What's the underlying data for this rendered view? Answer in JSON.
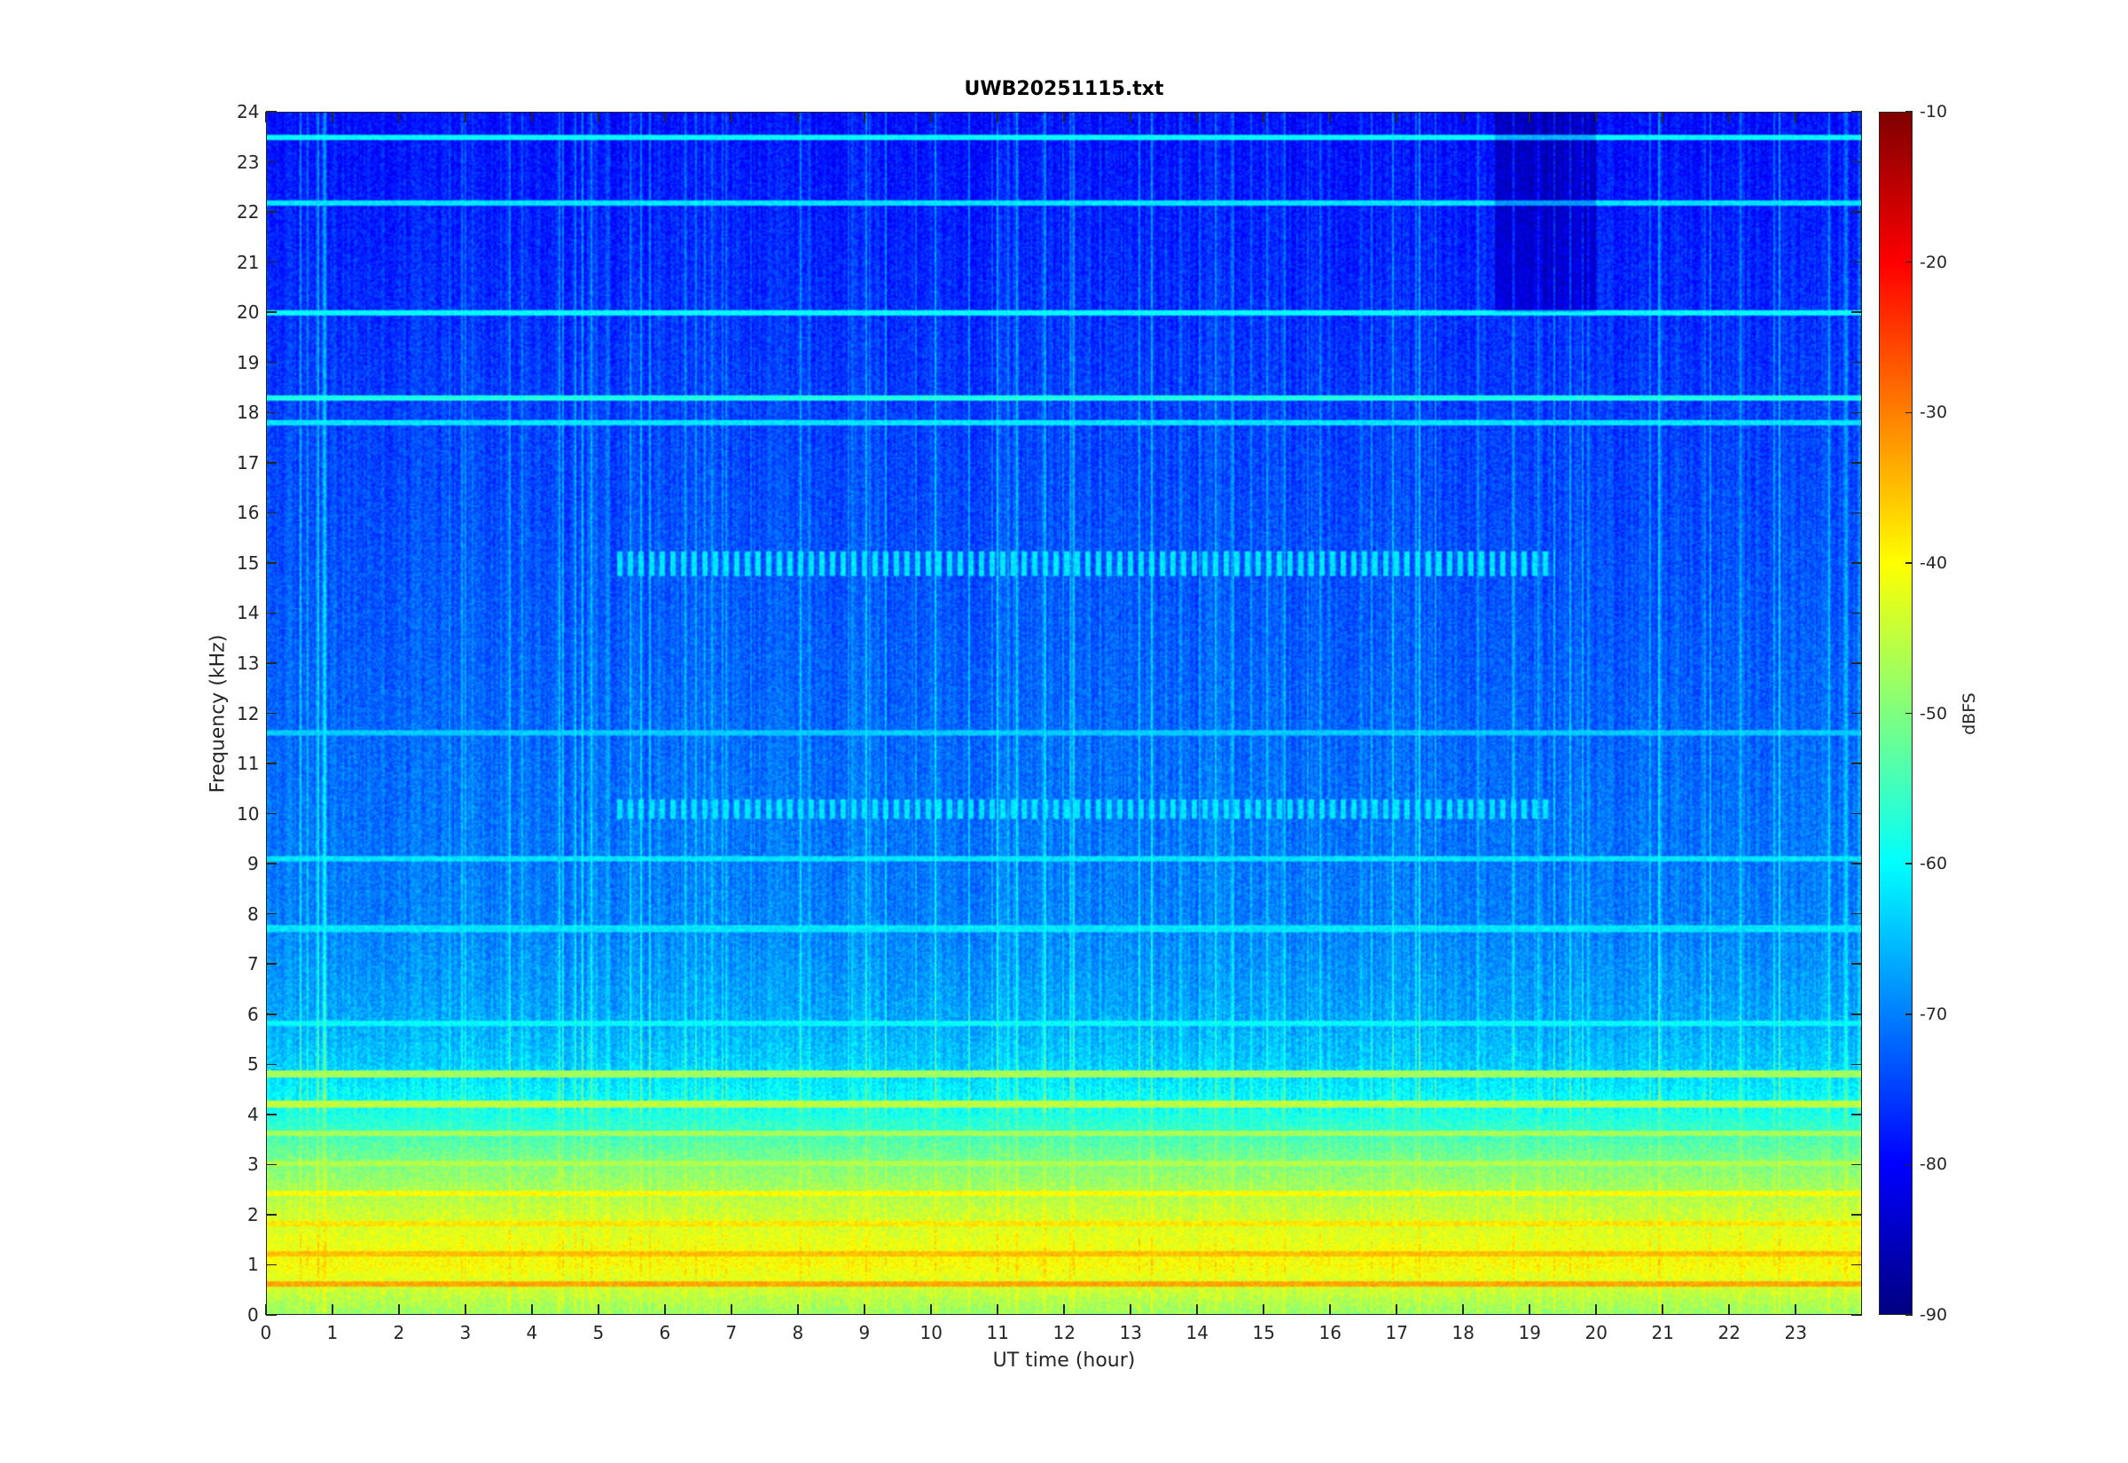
{
  "chart_data": {
    "type": "heatmap",
    "title": "UWB20251115.txt",
    "xlabel": "UT time (hour)",
    "ylabel": "Frequency (kHz)",
    "xlim": [
      0,
      24
    ],
    "ylim": [
      0,
      24
    ],
    "x_ticks": [
      "0",
      "1",
      "2",
      "3",
      "4",
      "5",
      "6",
      "7",
      "8",
      "9",
      "10",
      "11",
      "12",
      "13",
      "14",
      "15",
      "16",
      "17",
      "18",
      "19",
      "20",
      "21",
      "22",
      "23"
    ],
    "y_ticks": [
      "0",
      "1",
      "2",
      "3",
      "4",
      "5",
      "6",
      "7",
      "8",
      "9",
      "10",
      "11",
      "12",
      "13",
      "14",
      "15",
      "16",
      "17",
      "18",
      "19",
      "20",
      "21",
      "22",
      "23",
      "24"
    ],
    "colorbar": {
      "label": "dBFS",
      "range": [
        -90,
        -10
      ],
      "ticks": [
        "-10",
        "-20",
        "-30",
        "-40",
        "-50",
        "-60",
        "-70",
        "-80",
        "-90"
      ],
      "colormap": "jet"
    },
    "background_level_by_frequency": [
      {
        "freq_khz": 0,
        "dbfs": -48
      },
      {
        "freq_khz": 1,
        "dbfs": -40
      },
      {
        "freq_khz": 2,
        "dbfs": -44
      },
      {
        "freq_khz": 3,
        "dbfs": -50
      },
      {
        "freq_khz": 4,
        "dbfs": -58
      },
      {
        "freq_khz": 5,
        "dbfs": -64
      },
      {
        "freq_khz": 6,
        "dbfs": -67
      },
      {
        "freq_khz": 8,
        "dbfs": -70
      },
      {
        "freq_khz": 10,
        "dbfs": -71
      },
      {
        "freq_khz": 14,
        "dbfs": -73
      },
      {
        "freq_khz": 18,
        "dbfs": -75
      },
      {
        "freq_khz": 21,
        "dbfs": -77
      },
      {
        "freq_khz": 24,
        "dbfs": -79
      }
    ],
    "horizontal_lines": [
      {
        "freq_khz": 0.6,
        "dbfs": -33
      },
      {
        "freq_khz": 1.2,
        "dbfs": -35
      },
      {
        "freq_khz": 1.8,
        "dbfs": -38
      },
      {
        "freq_khz": 2.4,
        "dbfs": -40
      },
      {
        "freq_khz": 3.0,
        "dbfs": -46
      },
      {
        "freq_khz": 3.6,
        "dbfs": -47
      },
      {
        "freq_khz": 4.2,
        "dbfs": -45
      },
      {
        "freq_khz": 4.8,
        "dbfs": -47
      },
      {
        "freq_khz": 5.8,
        "dbfs": -60
      },
      {
        "freq_khz": 7.7,
        "dbfs": -62
      },
      {
        "freq_khz": 9.1,
        "dbfs": -62
      },
      {
        "freq_khz": 11.6,
        "dbfs": -64
      },
      {
        "freq_khz": 17.8,
        "dbfs": -62
      },
      {
        "freq_khz": 18.3,
        "dbfs": -58
      },
      {
        "freq_khz": 20.0,
        "dbfs": -60
      },
      {
        "freq_khz": 22.2,
        "dbfs": -62
      },
      {
        "freq_khz": 23.5,
        "dbfs": -60
      }
    ],
    "grid": false
  }
}
